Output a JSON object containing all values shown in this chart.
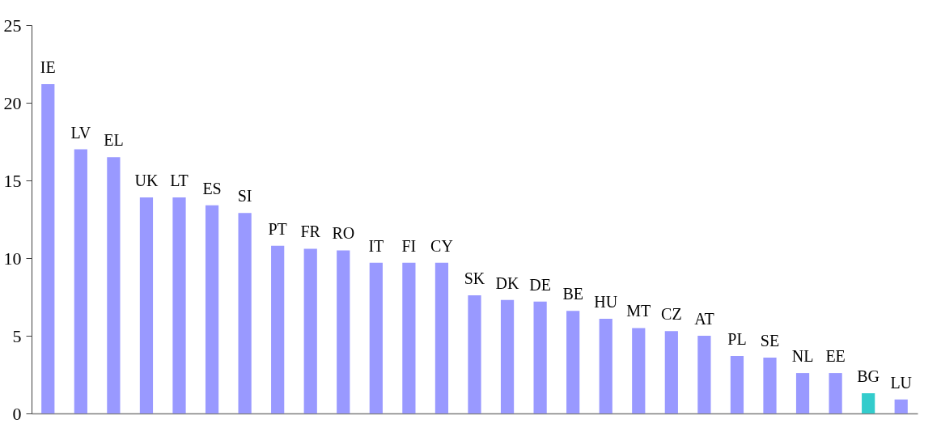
{
  "chart_data": {
    "type": "bar",
    "categories": [
      "IE",
      "LV",
      "EL",
      "UK",
      "LT",
      "ES",
      "SI",
      "PT",
      "FR",
      "RO",
      "IT",
      "FI",
      "CY",
      "SK",
      "DK",
      "DE",
      "BE",
      "HU",
      "MT",
      "CZ",
      "AT",
      "PL",
      "SE",
      "NL",
      "EE",
      "BG",
      "LU"
    ],
    "values": [
      21.2,
      17.0,
      16.5,
      13.9,
      13.9,
      13.4,
      12.9,
      10.8,
      10.6,
      10.5,
      9.7,
      9.7,
      9.7,
      7.6,
      7.3,
      7.2,
      6.6,
      6.1,
      5.5,
      5.3,
      5.0,
      3.7,
      3.6,
      2.6,
      2.6,
      1.3,
      0.9
    ],
    "colors": [
      "#9999ff",
      "#9999ff",
      "#9999ff",
      "#9999ff",
      "#9999ff",
      "#9999ff",
      "#9999ff",
      "#9999ff",
      "#9999ff",
      "#9999ff",
      "#9999ff",
      "#9999ff",
      "#9999ff",
      "#9999ff",
      "#9999ff",
      "#9999ff",
      "#9999ff",
      "#9999ff",
      "#9999ff",
      "#9999ff",
      "#9999ff",
      "#9999ff",
      "#9999ff",
      "#9999ff",
      "#9999ff",
      "#33cccc",
      "#9999ff"
    ],
    "ylim": [
      0,
      25
    ],
    "yticks": [
      0,
      5,
      10,
      15,
      20,
      25
    ],
    "grid": false
  }
}
